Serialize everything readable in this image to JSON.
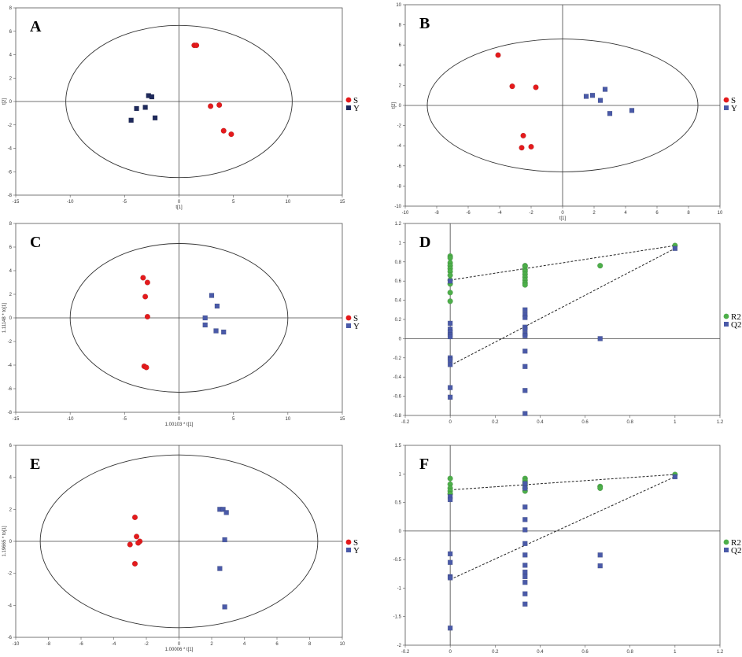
{
  "chart_data": [
    {
      "type": "scatter",
      "panel_label": "A",
      "xlabel": "t[1]",
      "ylabel": "t[2]",
      "xlim": [
        -15,
        15
      ],
      "ylim": [
        -8,
        8
      ],
      "xticks": [
        -15,
        -10,
        -5,
        0,
        5,
        10,
        15
      ],
      "yticks": [
        -8,
        -6,
        -4,
        -2,
        0,
        2,
        4,
        6,
        8
      ],
      "ellipse": {
        "rx": 10.4,
        "ry": 6.5
      },
      "series": [
        {
          "name": "S",
          "marker": "circle",
          "color": "#e41a1c",
          "points": [
            [
              1.4,
              4.8
            ],
            [
              1.6,
              4.8
            ],
            [
              2.9,
              -0.4
            ],
            [
              3.7,
              -0.3
            ],
            [
              4.1,
              -2.5
            ],
            [
              4.8,
              -2.8
            ]
          ]
        },
        {
          "name": "Y",
          "marker": "square",
          "color": "#1f2a5c",
          "points": [
            [
              -4.4,
              -1.6
            ],
            [
              -3.9,
              -0.6
            ],
            [
              -3.1,
              -0.5
            ],
            [
              -2.8,
              0.5
            ],
            [
              -2.5,
              0.4
            ],
            [
              -2.2,
              -1.4
            ]
          ]
        }
      ]
    },
    {
      "type": "scatter",
      "panel_label": "B",
      "xlabel": "t[1]",
      "ylabel": "t[2]",
      "xlim": [
        -10,
        10
      ],
      "ylim": [
        -10,
        10
      ],
      "xticks": [
        -10,
        -8,
        -6,
        -4,
        -2,
        0,
        2,
        4,
        6,
        8,
        10
      ],
      "yticks": [
        -10,
        -8,
        -6,
        -4,
        -2,
        0,
        2,
        4,
        6,
        8,
        10
      ],
      "ellipse": {
        "rx": 8.6,
        "ry": 6.6
      },
      "series": [
        {
          "name": "S",
          "marker": "circle",
          "color": "#e41a1c",
          "points": [
            [
              -4.1,
              5.0
            ],
            [
              -3.2,
              1.9
            ],
            [
              -1.7,
              1.8
            ],
            [
              -2.5,
              -3.0
            ],
            [
              -2.6,
              -4.2
            ],
            [
              -2.0,
              -4.1
            ]
          ]
        },
        {
          "name": "Y",
          "marker": "square",
          "color": "#4a5aa8",
          "points": [
            [
              1.5,
              0.9
            ],
            [
              1.9,
              1.0
            ],
            [
              2.4,
              0.5
            ],
            [
              2.7,
              1.6
            ],
            [
              3.0,
              -0.8
            ],
            [
              4.4,
              -0.5
            ]
          ]
        }
      ]
    },
    {
      "type": "scatter",
      "panel_label": "C",
      "xlabel": "1.00103 * t[1]",
      "ylabel": "1.11148 * to[1]",
      "xlim": [
        -15,
        15
      ],
      "ylim": [
        -8,
        8
      ],
      "xticks": [
        -15,
        -10,
        -5,
        0,
        5,
        10,
        15
      ],
      "yticks": [
        -8,
        -6,
        -4,
        -2,
        0,
        2,
        4,
        6,
        8
      ],
      "ellipse": {
        "rx": 10.0,
        "ry": 6.3
      },
      "series": [
        {
          "name": "S",
          "marker": "circle",
          "color": "#e41a1c",
          "points": [
            [
              -3.3,
              3.4
            ],
            [
              -2.9,
              3.0
            ],
            [
              -3.1,
              1.8
            ],
            [
              -2.9,
              0.1
            ],
            [
              -3.2,
              -4.1
            ],
            [
              -3.0,
              -4.2
            ]
          ]
        },
        {
          "name": "Y",
          "marker": "square",
          "color": "#4a5aa8",
          "points": [
            [
              3.0,
              1.9
            ],
            [
              3.5,
              1.0
            ],
            [
              2.4,
              0.0
            ],
            [
              2.4,
              -0.6
            ],
            [
              3.4,
              -1.1
            ],
            [
              4.1,
              -1.2
            ]
          ]
        }
      ]
    },
    {
      "type": "scatter",
      "panel_label": "D",
      "xlim": [
        -0.2,
        1.2
      ],
      "ylim": [
        -0.8,
        1.0
      ],
      "yaxis_range": [
        -0.8,
        1.2
      ],
      "xticks": [
        -0.2,
        0,
        0.2,
        0.4,
        0.6,
        0.8,
        1,
        1.2
      ],
      "yticks": [
        -0.8,
        -0.6,
        -0.4,
        -0.2,
        0,
        0.2,
        0.4,
        0.6,
        0.8,
        1,
        1.2
      ],
      "series": [
        {
          "name": "R2",
          "marker": "circle",
          "color": "#4daf4a",
          "points": [
            [
              0,
              0.86
            ],
            [
              0,
              0.84
            ],
            [
              0,
              0.79
            ],
            [
              0,
              0.76
            ],
            [
              0,
              0.73
            ],
            [
              0,
              0.7
            ],
            [
              0,
              0.66
            ],
            [
              0,
              0.61
            ],
            [
              0,
              0.57
            ],
            [
              0,
              0.48
            ],
            [
              0,
              0.39
            ],
            [
              0.333,
              0.76
            ],
            [
              0.333,
              0.75
            ],
            [
              0.333,
              0.72
            ],
            [
              0.333,
              0.7
            ],
            [
              0.333,
              0.67
            ],
            [
              0.333,
              0.64
            ],
            [
              0.333,
              0.61
            ],
            [
              0.333,
              0.58
            ],
            [
              0.333,
              0.56
            ],
            [
              0.667,
              0.76
            ],
            [
              1,
              0.97
            ]
          ],
          "regression": [
            [
              0,
              0.61
            ],
            [
              1,
              0.97
            ]
          ]
        },
        {
          "name": "Q2",
          "marker": "square",
          "color": "#4a5aa8",
          "points": [
            [
              0,
              0.6
            ],
            [
              0,
              0.16
            ],
            [
              0,
              0.1
            ],
            [
              0,
              0.07
            ],
            [
              0,
              0.04
            ],
            [
              0,
              0.02
            ],
            [
              0,
              -0.2
            ],
            [
              0,
              -0.22
            ],
            [
              0,
              -0.27
            ],
            [
              0,
              -0.51
            ],
            [
              0,
              -0.61
            ],
            [
              0.333,
              0.3
            ],
            [
              0.333,
              0.25
            ],
            [
              0.333,
              0.22
            ],
            [
              0.333,
              0.12
            ],
            [
              0.333,
              0.1
            ],
            [
              0.333,
              0.05
            ],
            [
              0.333,
              0.03
            ],
            [
              0.333,
              -0.13
            ],
            [
              0.333,
              -0.29
            ],
            [
              0.333,
              -0.54
            ],
            [
              0.333,
              -0.78
            ],
            [
              0.667,
              0.0
            ],
            [
              1,
              0.94
            ]
          ],
          "regression": [
            [
              0,
              -0.28
            ],
            [
              1,
              0.94
            ]
          ]
        }
      ]
    },
    {
      "type": "scatter",
      "panel_label": "E",
      "xlabel": "1.00006 * t[1]",
      "ylabel": "1.19665 * to[1]",
      "xlim": [
        -10,
        10
      ],
      "ylim": [
        -6,
        6
      ],
      "xticks": [
        -10,
        -8,
        -6,
        -4,
        -2,
        0,
        2,
        4,
        6,
        8,
        10
      ],
      "yticks": [
        -6,
        -4,
        -2,
        0,
        2,
        4,
        6
      ],
      "ellipse": {
        "rx": 8.5,
        "ry": 5.4
      },
      "series": [
        {
          "name": "S",
          "marker": "circle",
          "color": "#e41a1c",
          "points": [
            [
              -2.7,
              1.5
            ],
            [
              -2.6,
              0.3
            ],
            [
              -2.4,
              0.0
            ],
            [
              -2.5,
              -0.1
            ],
            [
              -3.0,
              -0.2
            ],
            [
              -2.7,
              -1.4
            ]
          ]
        },
        {
          "name": "Y",
          "marker": "square",
          "color": "#4a5aa8",
          "points": [
            [
              2.5,
              2.0
            ],
            [
              2.7,
              2.0
            ],
            [
              2.9,
              1.8
            ],
            [
              2.8,
              0.1
            ],
            [
              2.5,
              -1.7
            ],
            [
              2.8,
              -4.1
            ]
          ]
        }
      ]
    },
    {
      "type": "scatter",
      "panel_label": "F",
      "xlim": [
        -0.2,
        1.2
      ],
      "ylim": [
        -2,
        1.5
      ],
      "xticks": [
        -0.2,
        0,
        0.2,
        0.4,
        0.6,
        0.8,
        1,
        1.2
      ],
      "yticks": [
        -2,
        -1.5,
        -1,
        -0.5,
        0,
        0.5,
        1,
        1.5
      ],
      "series": [
        {
          "name": "R2",
          "marker": "circle",
          "color": "#4daf4a",
          "points": [
            [
              0,
              0.92
            ],
            [
              0,
              0.82
            ],
            [
              0,
              0.75
            ],
            [
              0,
              0.7
            ],
            [
              0,
              0.65
            ],
            [
              0.333,
              0.92
            ],
            [
              0.333,
              0.88
            ],
            [
              0.333,
              0.84
            ],
            [
              0.333,
              0.8
            ],
            [
              0.333,
              0.75
            ],
            [
              0.333,
              0.7
            ],
            [
              0.667,
              0.78
            ],
            [
              0.667,
              0.75
            ],
            [
              1,
              0.99
            ]
          ],
          "regression": [
            [
              0,
              0.72
            ],
            [
              1,
              0.99
            ]
          ]
        },
        {
          "name": "Q2",
          "marker": "square",
          "color": "#4a5aa8",
          "points": [
            [
              0,
              0.6
            ],
            [
              0,
              0.55
            ],
            [
              0,
              -0.4
            ],
            [
              0,
              -0.55
            ],
            [
              0,
              -0.8
            ],
            [
              0,
              -0.82
            ],
            [
              0,
              -1.7
            ],
            [
              0.333,
              0.83
            ],
            [
              0.333,
              0.75
            ],
            [
              0.333,
              0.42
            ],
            [
              0.333,
              0.2
            ],
            [
              0.333,
              0.02
            ],
            [
              0.333,
              -0.22
            ],
            [
              0.333,
              -0.42
            ],
            [
              0.333,
              -0.6
            ],
            [
              0.333,
              -0.72
            ],
            [
              0.333,
              -0.8
            ],
            [
              0.333,
              -0.9
            ],
            [
              0.333,
              -1.1
            ],
            [
              0.333,
              -1.28
            ],
            [
              0.667,
              -0.42
            ],
            [
              0.667,
              -0.61
            ],
            [
              1,
              0.95
            ]
          ],
          "regression": [
            [
              0,
              -0.85
            ],
            [
              1,
              0.95
            ]
          ]
        }
      ]
    }
  ]
}
